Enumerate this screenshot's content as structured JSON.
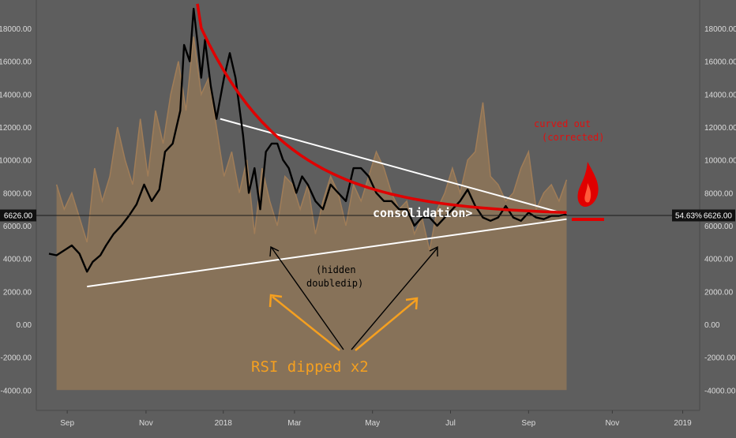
{
  "chart_data": {
    "type": "line",
    "title": "",
    "xlabel": "",
    "ylabel": "",
    "ylim": [
      -4500,
      19500
    ],
    "grid": false,
    "y_ticks": [
      "18000.00",
      "16000.00",
      "14000.00",
      "12000.00",
      "10000.00",
      "8000.00",
      "6000.00",
      "4000.00",
      "2000.00",
      "0.00",
      "-2000.00",
      "-4000.00"
    ],
    "y_tick_values": [
      18000,
      16000,
      14000,
      12000,
      10000,
      8000,
      6000,
      4000,
      2000,
      0,
      -2000,
      -4000
    ],
    "x_ticks": [
      "Sep",
      "Nov",
      "2018",
      "Mar",
      "May",
      "Jul",
      "Sep",
      "Nov",
      "2019"
    ],
    "x_tick_months": [
      0.48,
      2.55,
      4.58,
      6.45,
      8.5,
      10.55,
      12.6,
      14.8,
      16.65
    ],
    "x_month_origin": "2017-09",
    "price_label": "6626.00",
    "price_value": 6626,
    "rsi_label": "54.63%",
    "series": [
      {
        "color": "#000000",
        "x": [
          0.0,
          0.2,
          0.4,
          0.6,
          0.8,
          1.0,
          1.15,
          1.35,
          1.5,
          1.7,
          1.9,
          2.1,
          2.3,
          2.5,
          2.7,
          2.9,
          3.05,
          3.25,
          3.45,
          3.55,
          3.7,
          3.8,
          3.9,
          4.0,
          4.1,
          4.25,
          4.4,
          4.6,
          4.75,
          4.9,
          5.1,
          5.25,
          5.4,
          5.55,
          5.7,
          5.85,
          6.0,
          6.15,
          6.3,
          6.5,
          6.65,
          6.8,
          7.0,
          7.2,
          7.4,
          7.6,
          7.8,
          8.0,
          8.2,
          8.4,
          8.6,
          8.8,
          9.0,
          9.2,
          9.4,
          9.6,
          9.8,
          10.0,
          10.2,
          10.4,
          10.6,
          10.8,
          11.0,
          11.2,
          11.4,
          11.6,
          11.8,
          12.0,
          12.2,
          12.4,
          12.6,
          12.8,
          13.0,
          13.2,
          13.4,
          13.6
        ],
        "y": [
          4300,
          4200,
          4500,
          4800,
          4300,
          3200,
          3800,
          4200,
          4800,
          5500,
          6000,
          6600,
          7300,
          8500,
          7500,
          8200,
          10500,
          11000,
          13000,
          17000,
          16000,
          19200,
          17200,
          15000,
          17300,
          14500,
          12500,
          15000,
          16500,
          15000,
          11500,
          8000,
          9500,
          7000,
          10500,
          11000,
          11000,
          10000,
          9500,
          8000,
          9000,
          8500,
          7500,
          7000,
          8500,
          8000,
          7500,
          9500,
          9500,
          9000,
          8000,
          7500,
          7500,
          7000,
          7000,
          6000,
          6500,
          6500,
          6000,
          6500,
          7000,
          7500,
          8200,
          7200,
          6500,
          6300,
          6500,
          7200,
          6500,
          6300,
          6800,
          6500,
          6400,
          6600,
          6600,
          6700
        ]
      },
      {
        "color": "#a07d58",
        "x": [
          0.2,
          0.4,
          0.6,
          0.8,
          1.0,
          1.2,
          1.4,
          1.6,
          1.8,
          2.0,
          2.2,
          2.4,
          2.6,
          2.8,
          3.0,
          3.2,
          3.4,
          3.6,
          3.8,
          4.0,
          4.2,
          4.4,
          4.6,
          4.8,
          5.0,
          5.2,
          5.4,
          5.6,
          5.8,
          6.0,
          6.2,
          6.4,
          6.6,
          6.8,
          7.0,
          7.2,
          7.4,
          7.6,
          7.8,
          8.0,
          8.2,
          8.4,
          8.6,
          8.8,
          9.0,
          9.2,
          9.4,
          9.6,
          9.8,
          10.0,
          10.2,
          10.4,
          10.6,
          10.8,
          11.0,
          11.2,
          11.4,
          11.6,
          11.8,
          12.0,
          12.2,
          12.4,
          12.6,
          12.8,
          13.0,
          13.2,
          13.4,
          13.6
        ],
        "y": [
          8500,
          7000,
          8000,
          6500,
          5000,
          9500,
          7500,
          9000,
          12000,
          10000,
          8500,
          12500,
          9000,
          13000,
          11000,
          14000,
          16000,
          13000,
          17500,
          14000,
          15000,
          12000,
          9000,
          10500,
          8000,
          10000,
          5500,
          9500,
          7500,
          6000,
          9000,
          8500,
          7000,
          8500,
          5500,
          7500,
          9000,
          8000,
          6000,
          8500,
          7500,
          9000,
          10500,
          9500,
          8000,
          7000,
          7500,
          5500,
          6500,
          4500,
          7000,
          8000,
          9500,
          8000,
          10000,
          10500,
          13500,
          9000,
          8500,
          7500,
          8000,
          9500,
          10500,
          7000,
          8000,
          8500,
          7500,
          8800
        ]
      }
    ],
    "annotations": {
      "curved_out": "curved out",
      "corrected": "(corrected)",
      "consolidation": "consolidation>",
      "hidden": "(hidden",
      "doubledip": "doubledip)",
      "rsi_dipped": "RSI dipped x2"
    }
  }
}
